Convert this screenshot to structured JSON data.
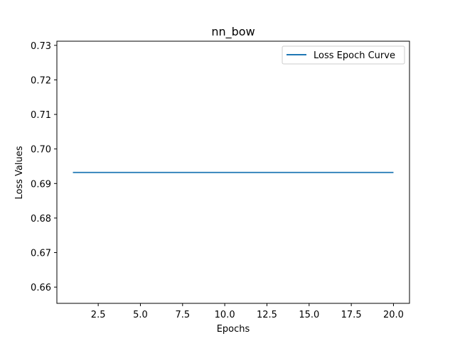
{
  "chart_data": {
    "type": "line",
    "title": "nn_bow",
    "xlabel": "Epochs",
    "ylabel": "Loss Values",
    "x": [
      1,
      2,
      3,
      4,
      5,
      6,
      7,
      8,
      9,
      10,
      11,
      12,
      13,
      14,
      15,
      16,
      17,
      18,
      19,
      20
    ],
    "series": [
      {
        "name": "Loss Epoch Curve",
        "color": "#1f77b4",
        "values": [
          0.6932,
          0.6932,
          0.6932,
          0.6932,
          0.6932,
          0.6932,
          0.6932,
          0.6932,
          0.6932,
          0.6932,
          0.6932,
          0.6932,
          0.6932,
          0.6932,
          0.6932,
          0.6932,
          0.6932,
          0.6932,
          0.6932,
          0.6932
        ]
      }
    ],
    "xlim": [
      0.05,
      20.95
    ],
    "ylim": [
      0.6553,
      0.7312
    ],
    "xticks": [
      2.5,
      5.0,
      7.5,
      10.0,
      12.5,
      15.0,
      17.5,
      20.0
    ],
    "xtick_labels": [
      "2.5",
      "5.0",
      "7.5",
      "10.0",
      "12.5",
      "15.0",
      "17.5",
      "20.0"
    ],
    "yticks": [
      0.66,
      0.67,
      0.68,
      0.69,
      0.7,
      0.71,
      0.72,
      0.73
    ],
    "ytick_labels": [
      "0.66",
      "0.67",
      "0.68",
      "0.69",
      "0.70",
      "0.71",
      "0.72",
      "0.73"
    ],
    "grid": false,
    "legend_position": "top-right"
  }
}
